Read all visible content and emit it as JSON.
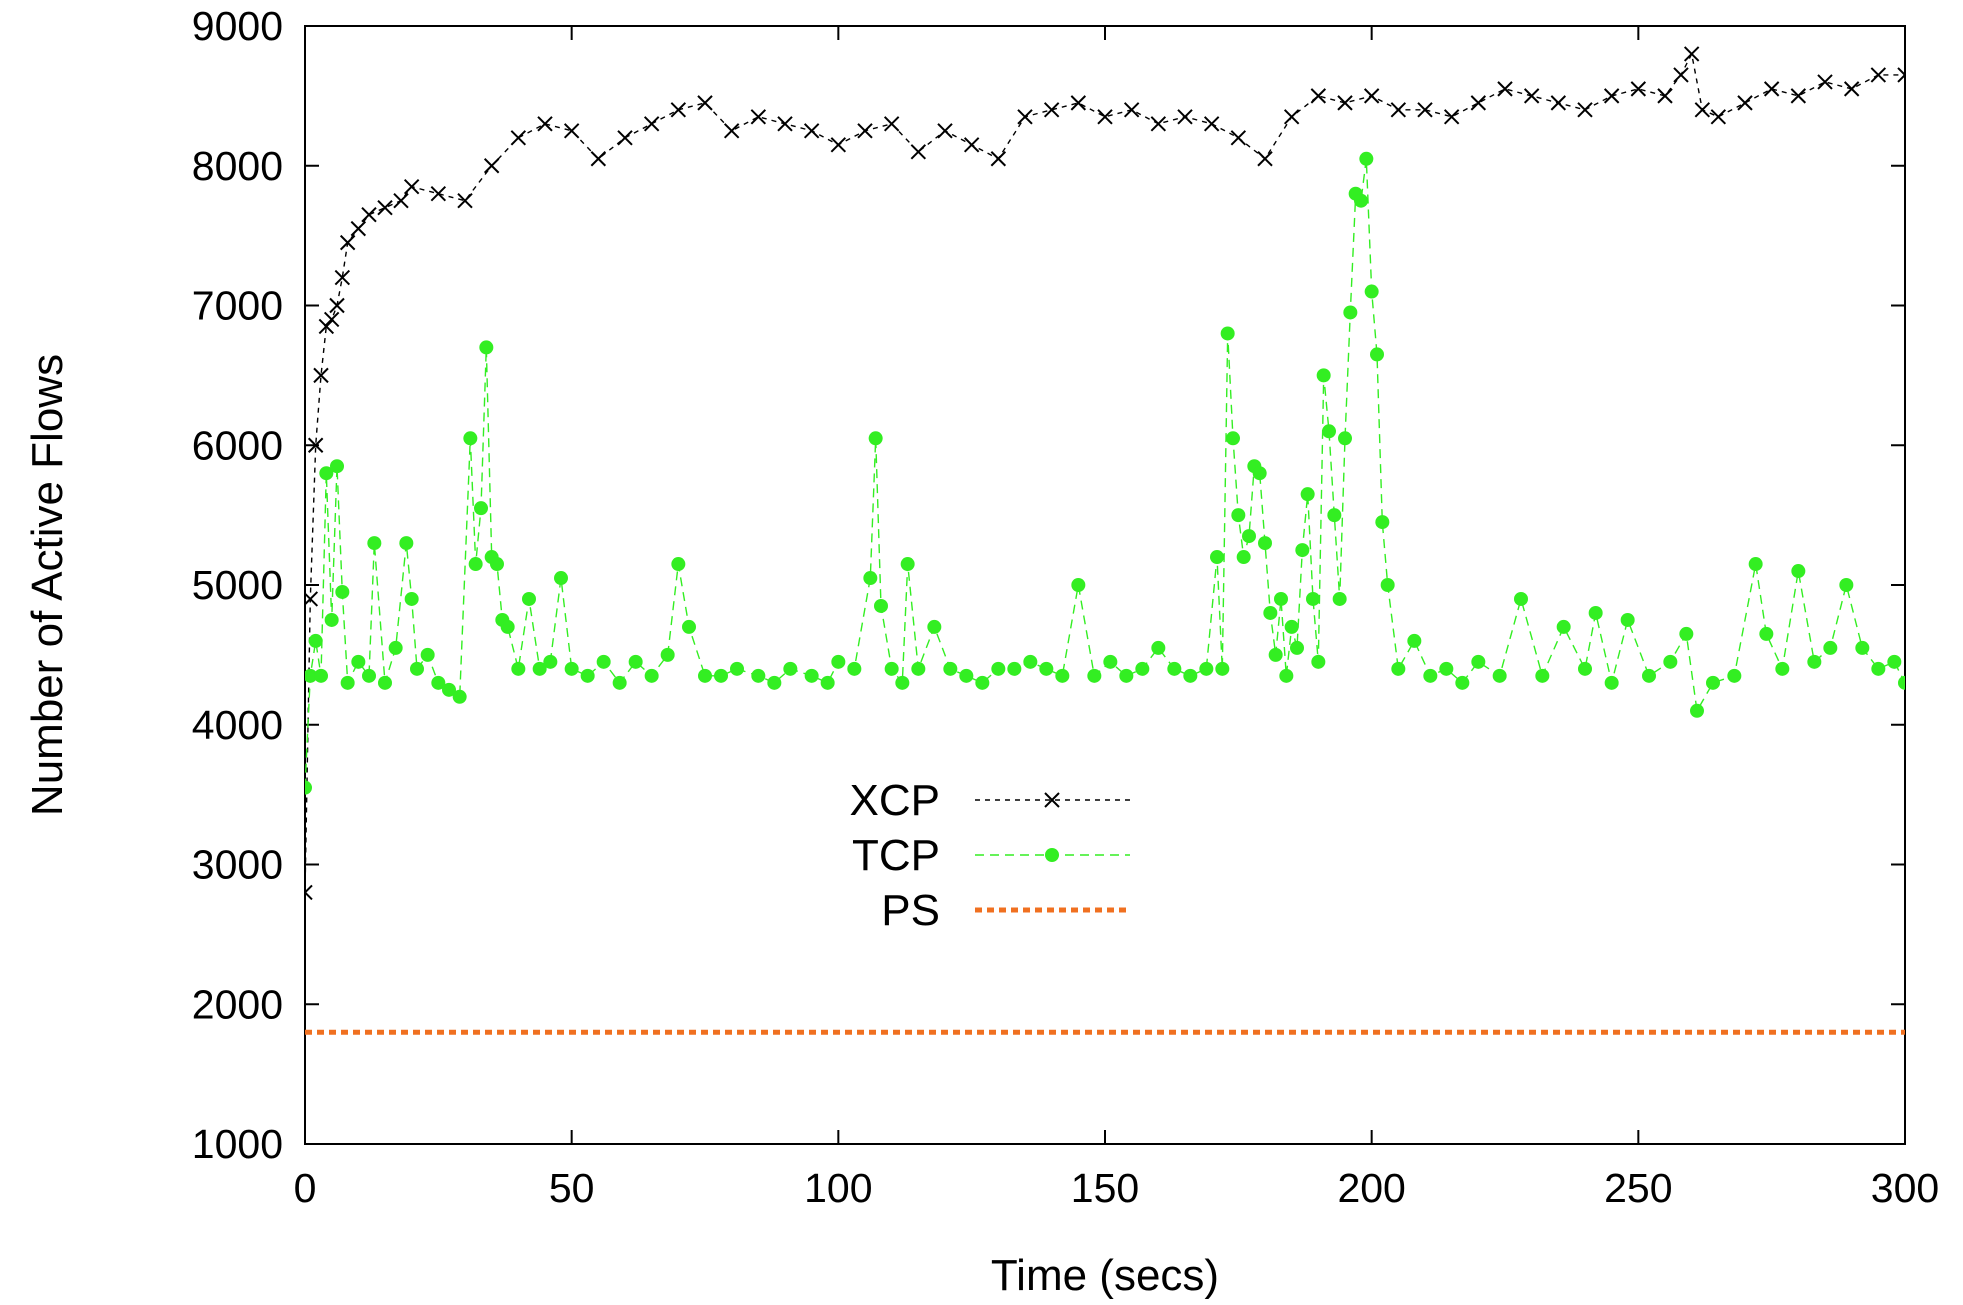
{
  "chart_data": {
    "type": "line",
    "xlabel": "Time (secs)",
    "ylabel": "Number of Active Flows",
    "xlim": [
      0,
      300
    ],
    "ylim": [
      1000,
      9000
    ],
    "xticks": [
      "0",
      "50",
      "100",
      "150",
      "200",
      "250",
      "300"
    ],
    "yticks": [
      "1000",
      "2000",
      "3000",
      "4000",
      "5000",
      "6000",
      "7000",
      "8000",
      "9000"
    ],
    "grid": false,
    "legend_position": "center-left",
    "series": [
      {
        "name": "XCP",
        "color": "#000000",
        "marker": "x",
        "line": "dashed",
        "x": [
          0,
          1,
          2,
          3,
          4,
          5,
          6,
          7,
          8,
          10,
          12,
          15,
          18,
          20,
          25,
          30,
          35,
          40,
          45,
          50,
          55,
          60,
          65,
          70,
          75,
          80,
          85,
          90,
          95,
          100,
          105,
          110,
          115,
          120,
          125,
          130,
          135,
          140,
          145,
          150,
          155,
          160,
          165,
          170,
          175,
          180,
          185,
          190,
          195,
          200,
          205,
          210,
          215,
          220,
          225,
          230,
          235,
          240,
          245,
          250,
          255,
          258,
          260,
          262,
          265,
          270,
          275,
          280,
          285,
          290,
          295,
          300
        ],
        "y": [
          2800,
          4900,
          6000,
          6500,
          6850,
          6900,
          7000,
          7200,
          7450,
          7550,
          7650,
          7700,
          7750,
          7850,
          7800,
          7750,
          8000,
          8200,
          8300,
          8250,
          8050,
          8200,
          8300,
          8400,
          8450,
          8250,
          8350,
          8300,
          8250,
          8150,
          8250,
          8300,
          8100,
          8250,
          8150,
          8050,
          8350,
          8400,
          8450,
          8350,
          8400,
          8300,
          8350,
          8300,
          8200,
          8050,
          8350,
          8500,
          8450,
          8500,
          8400,
          8400,
          8350,
          8450,
          8550,
          8500,
          8450,
          8400,
          8500,
          8550,
          8500,
          8650,
          8800,
          8400,
          8350,
          8450,
          8550,
          8500,
          8600,
          8550,
          8650,
          8650
        ]
      },
      {
        "name": "TCP",
        "color": "#33ee22",
        "marker": "circle",
        "line": "dashed",
        "x": [
          0,
          1,
          2,
          3,
          4,
          5,
          6,
          7,
          8,
          10,
          12,
          13,
          15,
          17,
          19,
          20,
          21,
          23,
          25,
          27,
          29,
          31,
          32,
          33,
          34,
          35,
          36,
          37,
          38,
          40,
          42,
          44,
          46,
          48,
          50,
          53,
          56,
          59,
          62,
          65,
          68,
          70,
          72,
          75,
          78,
          81,
          85,
          88,
          91,
          95,
          98,
          100,
          103,
          106,
          107,
          108,
          110,
          112,
          113,
          115,
          118,
          121,
          124,
          127,
          130,
          133,
          136,
          139,
          142,
          145,
          148,
          151,
          154,
          157,
          160,
          163,
          166,
          169,
          171,
          172,
          173,
          174,
          175,
          176,
          177,
          178,
          179,
          180,
          181,
          182,
          183,
          184,
          185,
          186,
          187,
          188,
          189,
          190,
          191,
          192,
          193,
          194,
          195,
          196,
          197,
          198,
          199,
          200,
          201,
          202,
          203,
          205,
          208,
          211,
          214,
          217,
          220,
          224,
          228,
          232,
          236,
          240,
          242,
          245,
          248,
          252,
          256,
          259,
          261,
          264,
          268,
          272,
          274,
          277,
          280,
          283,
          286,
          289,
          292,
          295,
          298,
          300
        ],
        "y": [
          3550,
          4350,
          4600,
          4350,
          5800,
          4750,
          5850,
          4950,
          4300,
          4450,
          4350,
          5300,
          4300,
          4550,
          5300,
          4900,
          4400,
          4500,
          4300,
          4250,
          4200,
          6050,
          5150,
          5550,
          6700,
          5200,
          5150,
          4750,
          4700,
          4400,
          4900,
          4400,
          4450,
          5050,
          4400,
          4350,
          4450,
          4300,
          4450,
          4350,
          4500,
          5150,
          4700,
          4350,
          4350,
          4400,
          4350,
          4300,
          4400,
          4350,
          4300,
          4450,
          4400,
          5050,
          6050,
          4850,
          4400,
          4300,
          5150,
          4400,
          4700,
          4400,
          4350,
          4300,
          4400,
          4400,
          4450,
          4400,
          4350,
          5000,
          4350,
          4450,
          4350,
          4400,
          4550,
          4400,
          4350,
          4400,
          5200,
          4400,
          6800,
          6050,
          5500,
          5200,
          5350,
          5850,
          5800,
          5300,
          4800,
          4500,
          4900,
          4350,
          4700,
          4550,
          5250,
          5650,
          4900,
          4450,
          6500,
          6100,
          5500,
          4900,
          6050,
          6950,
          7800,
          7750,
          8050,
          7100,
          6650,
          5450,
          5000,
          4400,
          4600,
          4350,
          4400,
          4300,
          4450,
          4350,
          4900,
          4350,
          4700,
          4400,
          4800,
          4300,
          4750,
          4350,
          4450,
          4650,
          4100,
          4300,
          4350,
          5150,
          4650,
          4400,
          5100,
          4450,
          4550,
          5000,
          4550,
          4400,
          4450,
          4300
        ]
      },
      {
        "name": "PS",
        "color": "#f07020",
        "marker": "none",
        "line": "dotted",
        "x": [
          0,
          300
        ],
        "y": [
          1800,
          1800
        ]
      }
    ]
  }
}
